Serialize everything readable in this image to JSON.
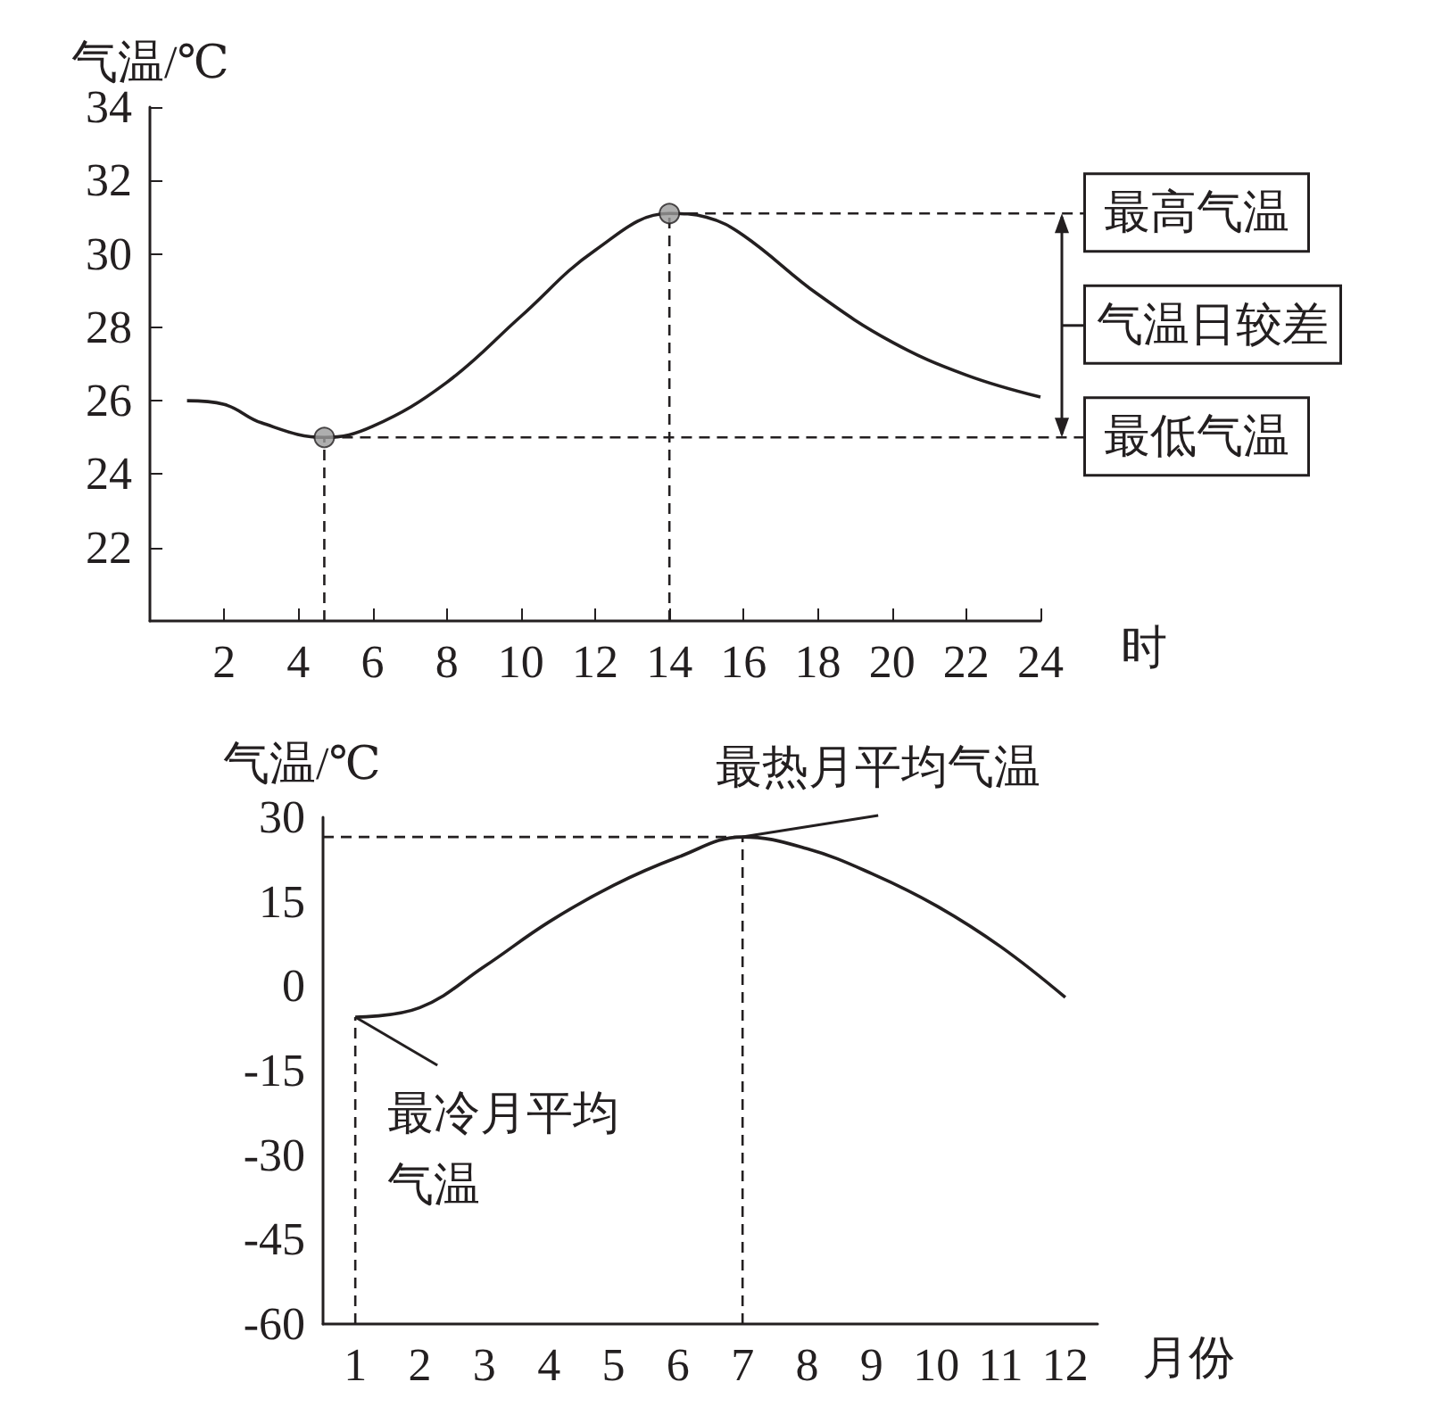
{
  "chart_data": [
    {
      "type": "line",
      "ylabel": "气温/℃",
      "xlabel": "时",
      "x": [
        1,
        2,
        3,
        4.7,
        6,
        8,
        10,
        12,
        14,
        15,
        16,
        18,
        20,
        22,
        24
      ],
      "xlim": [
        0,
        24
      ],
      "xticks": [
        2,
        4,
        6,
        8,
        10,
        12,
        14,
        16,
        18,
        20,
        22,
        24
      ],
      "ylim": [
        20,
        34
      ],
      "yticks": [
        22,
        24,
        26,
        28,
        30,
        32,
        34
      ],
      "series": [
        {
          "color": "#231f20",
          "values": [
            26,
            25.9,
            25.4,
            25,
            25.3,
            26.5,
            28.3,
            30.1,
            31.1,
            31,
            30.5,
            28.9,
            27.6,
            26.7,
            26.1
          ]
        },
        {
          "type": "scatter",
          "x": [
            4.7,
            14
          ],
          "values": [
            25,
            31.1
          ],
          "color": "#9a9a9a"
        }
      ],
      "annotations": [
        "最高气温",
        "最低气温",
        "气温日较差"
      ],
      "ref_lines": [
        {
          "axis": "x",
          "value": 4.7,
          "line_style": "dashed"
        },
        {
          "axis": "x",
          "value": 14,
          "line_style": "dashed"
        },
        {
          "axis": "y",
          "value": 31.1,
          "line_style": "dashed"
        },
        {
          "axis": "y",
          "value": 25,
          "line_style": "dashed"
        }
      ]
    },
    {
      "type": "line",
      "ylabel": "气温/℃",
      "xlabel": "月份",
      "categories": [
        "1",
        "2",
        "3",
        "4",
        "5",
        "6",
        "7",
        "8",
        "9",
        "10",
        "11",
        "12"
      ],
      "values": [
        -5.5,
        -3.8,
        3.5,
        11.4,
        17.9,
        22.9,
        26.5,
        24.4,
        20,
        14.3,
        7,
        -2
      ],
      "color": "#231f20",
      "ylim": [
        -60,
        30
      ],
      "yticks": [
        30,
        15,
        0,
        -15,
        -30,
        -45,
        -60
      ],
      "annotations": [
        {
          "text": "最热月平均气温",
          "x": "7",
          "y": 26.5
        },
        {
          "text": "最冷月平均气温",
          "x": "1",
          "y": -5.5
        }
      ],
      "ref_lines": [
        {
          "axis": "x",
          "value": "1",
          "line_style": "dashed"
        },
        {
          "axis": "x",
          "value": "7",
          "line_style": "dashed"
        },
        {
          "axis": "y",
          "value": 26.5,
          "line_style": "dashed"
        }
      ]
    }
  ]
}
